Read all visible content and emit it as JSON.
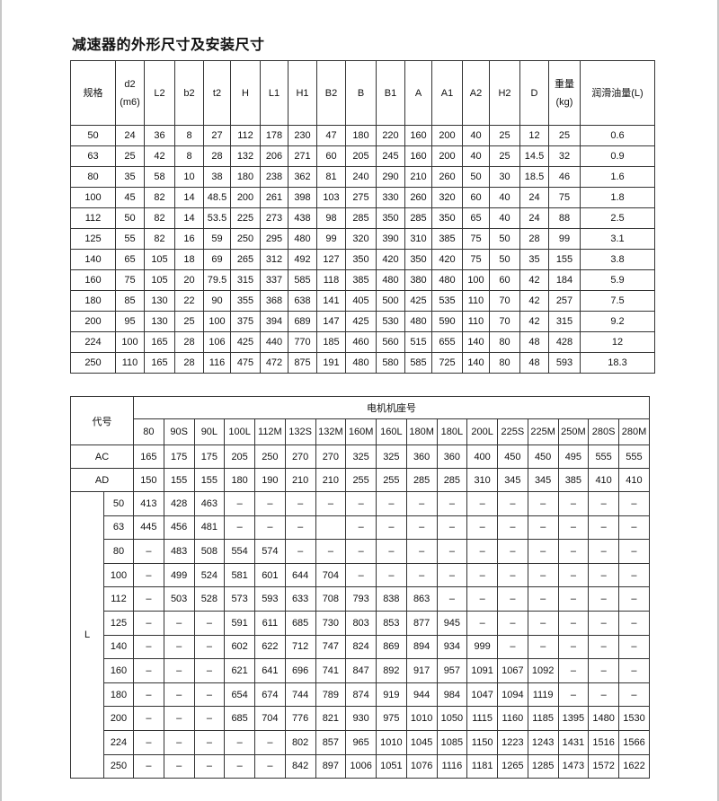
{
  "title": "减速器的外形尺寸及安装尺寸",
  "table1": {
    "headers": [
      "规格",
      "d2\n(m6)",
      "L2",
      "b2",
      "t2",
      "H",
      "L1",
      "H1",
      "B2",
      "B",
      "B1",
      "A",
      "A1",
      "A2",
      "H2",
      "D",
      "重量\n(kg)",
      "润滑油量(L)"
    ],
    "rows": [
      [
        "50",
        "24",
        "36",
        "8",
        "27",
        "112",
        "178",
        "230",
        "47",
        "180",
        "220",
        "160",
        "200",
        "40",
        "25",
        "12",
        "25",
        "0.6"
      ],
      [
        "63",
        "25",
        "42",
        "8",
        "28",
        "132",
        "206",
        "271",
        "60",
        "205",
        "245",
        "160",
        "200",
        "40",
        "25",
        "14.5",
        "32",
        "0.9"
      ],
      [
        "80",
        "35",
        "58",
        "10",
        "38",
        "180",
        "238",
        "362",
        "81",
        "240",
        "290",
        "210",
        "260",
        "50",
        "30",
        "18.5",
        "46",
        "1.6"
      ],
      [
        "100",
        "45",
        "82",
        "14",
        "48.5",
        "200",
        "261",
        "398",
        "103",
        "275",
        "330",
        "260",
        "320",
        "60",
        "40",
        "24",
        "75",
        "1.8"
      ],
      [
        "112",
        "50",
        "82",
        "14",
        "53.5",
        "225",
        "273",
        "438",
        "98",
        "285",
        "350",
        "285",
        "350",
        "65",
        "40",
        "24",
        "88",
        "2.5"
      ],
      [
        "125",
        "55",
        "82",
        "16",
        "59",
        "250",
        "295",
        "480",
        "99",
        "320",
        "390",
        "310",
        "385",
        "75",
        "50",
        "28",
        "99",
        "3.1"
      ],
      [
        "140",
        "65",
        "105",
        "18",
        "69",
        "265",
        "312",
        "492",
        "127",
        "350",
        "420",
        "350",
        "420",
        "75",
        "50",
        "35",
        "155",
        "3.8"
      ],
      [
        "160",
        "75",
        "105",
        "20",
        "79.5",
        "315",
        "337",
        "585",
        "118",
        "385",
        "480",
        "380",
        "480",
        "100",
        "60",
        "42",
        "184",
        "5.9"
      ],
      [
        "180",
        "85",
        "130",
        "22",
        "90",
        "355",
        "368",
        "638",
        "141",
        "405",
        "500",
        "425",
        "535",
        "110",
        "70",
        "42",
        "257",
        "7.5"
      ],
      [
        "200",
        "95",
        "130",
        "25",
        "100",
        "375",
        "394",
        "689",
        "147",
        "425",
        "530",
        "480",
        "590",
        "110",
        "70",
        "42",
        "315",
        "9.2"
      ],
      [
        "224",
        "100",
        "165",
        "28",
        "106",
        "425",
        "440",
        "770",
        "185",
        "460",
        "560",
        "515",
        "655",
        "140",
        "80",
        "48",
        "428",
        "12"
      ],
      [
        "250",
        "110",
        "165",
        "28",
        "116",
        "475",
        "472",
        "875",
        "191",
        "480",
        "580",
        "585",
        "725",
        "140",
        "80",
        "48",
        "593",
        "18.3"
      ]
    ]
  },
  "table2": {
    "code_label": "代号",
    "group_label": "电机机座号",
    "frames": [
      "80",
      "90S",
      "90L",
      "100L",
      "112M",
      "132S",
      "132M",
      "160M",
      "160L",
      "180M",
      "180L",
      "200L",
      "225S",
      "225M",
      "250M",
      "280S",
      "280M"
    ],
    "AC": {
      "label": "AC",
      "values": [
        "165",
        "175",
        "175",
        "205",
        "250",
        "270",
        "270",
        "325",
        "325",
        "360",
        "360",
        "400",
        "450",
        "450",
        "495",
        "555",
        "555"
      ]
    },
    "AD": {
      "label": "AD",
      "values": [
        "150",
        "155",
        "155",
        "180",
        "190",
        "210",
        "210",
        "255",
        "255",
        "285",
        "285",
        "310",
        "345",
        "345",
        "385",
        "410",
        "410"
      ]
    },
    "L_label": "L",
    "L_rows": [
      {
        "size": "50",
        "values": [
          "413",
          "428",
          "463",
          "–",
          "–",
          "–",
          "–",
          "–",
          "–",
          "–",
          "–",
          "–",
          "–",
          "–",
          "–",
          "–",
          "–"
        ]
      },
      {
        "size": "63",
        "values": [
          "445",
          "456",
          "481",
          "–",
          "–",
          "–",
          "",
          "–",
          "–",
          "–",
          "–",
          "–",
          "–",
          "–",
          "–",
          "–",
          "–"
        ]
      },
      {
        "size": "80",
        "values": [
          "–",
          "483",
          "508",
          "554",
          "574",
          "–",
          "–",
          "–",
          "–",
          "–",
          "–",
          "–",
          "–",
          "–",
          "–",
          "–",
          "–"
        ]
      },
      {
        "size": "100",
        "values": [
          "–",
          "499",
          "524",
          "581",
          "601",
          "644",
          "704",
          "–",
          "–",
          "–",
          "–",
          "–",
          "–",
          "–",
          "–",
          "–",
          "–"
        ]
      },
      {
        "size": "112",
        "values": [
          "–",
          "503",
          "528",
          "573",
          "593",
          "633",
          "708",
          "793",
          "838",
          "863",
          "–",
          "–",
          "–",
          "–",
          "–",
          "–",
          "–"
        ]
      },
      {
        "size": "125",
        "values": [
          "–",
          "–",
          "–",
          "591",
          "611",
          "685",
          "730",
          "803",
          "853",
          "877",
          "945",
          "–",
          "–",
          "–",
          "–",
          "–",
          "–"
        ]
      },
      {
        "size": "140",
        "values": [
          "–",
          "–",
          "–",
          "602",
          "622",
          "712",
          "747",
          "824",
          "869",
          "894",
          "934",
          "999",
          "–",
          "–",
          "–",
          "–",
          "–"
        ]
      },
      {
        "size": "160",
        "values": [
          "–",
          "–",
          "–",
          "621",
          "641",
          "696",
          "741",
          "847",
          "892",
          "917",
          "957",
          "1091",
          "1067",
          "1092",
          "–",
          "–",
          "–"
        ]
      },
      {
        "size": "180",
        "values": [
          "–",
          "–",
          "–",
          "654",
          "674",
          "744",
          "789",
          "874",
          "919",
          "944",
          "984",
          "1047",
          "1094",
          "1119",
          "–",
          "–",
          "–"
        ]
      },
      {
        "size": "200",
        "values": [
          "–",
          "–",
          "–",
          "685",
          "704",
          "776",
          "821",
          "930",
          "975",
          "1010",
          "1050",
          "1115",
          "1160",
          "1185",
          "1395",
          "1480",
          "1530"
        ]
      },
      {
        "size": "224",
        "values": [
          "–",
          "–",
          "–",
          "–",
          "–",
          "802",
          "857",
          "965",
          "1010",
          "1045",
          "1085",
          "1150",
          "1223",
          "1243",
          "1431",
          "1516",
          "1566"
        ]
      },
      {
        "size": "250",
        "values": [
          "–",
          "–",
          "–",
          "–",
          "–",
          "842",
          "897",
          "1006",
          "1051",
          "1076",
          "1116",
          "1181",
          "1265",
          "1285",
          "1473",
          "1572",
          "1622"
        ]
      }
    ]
  }
}
